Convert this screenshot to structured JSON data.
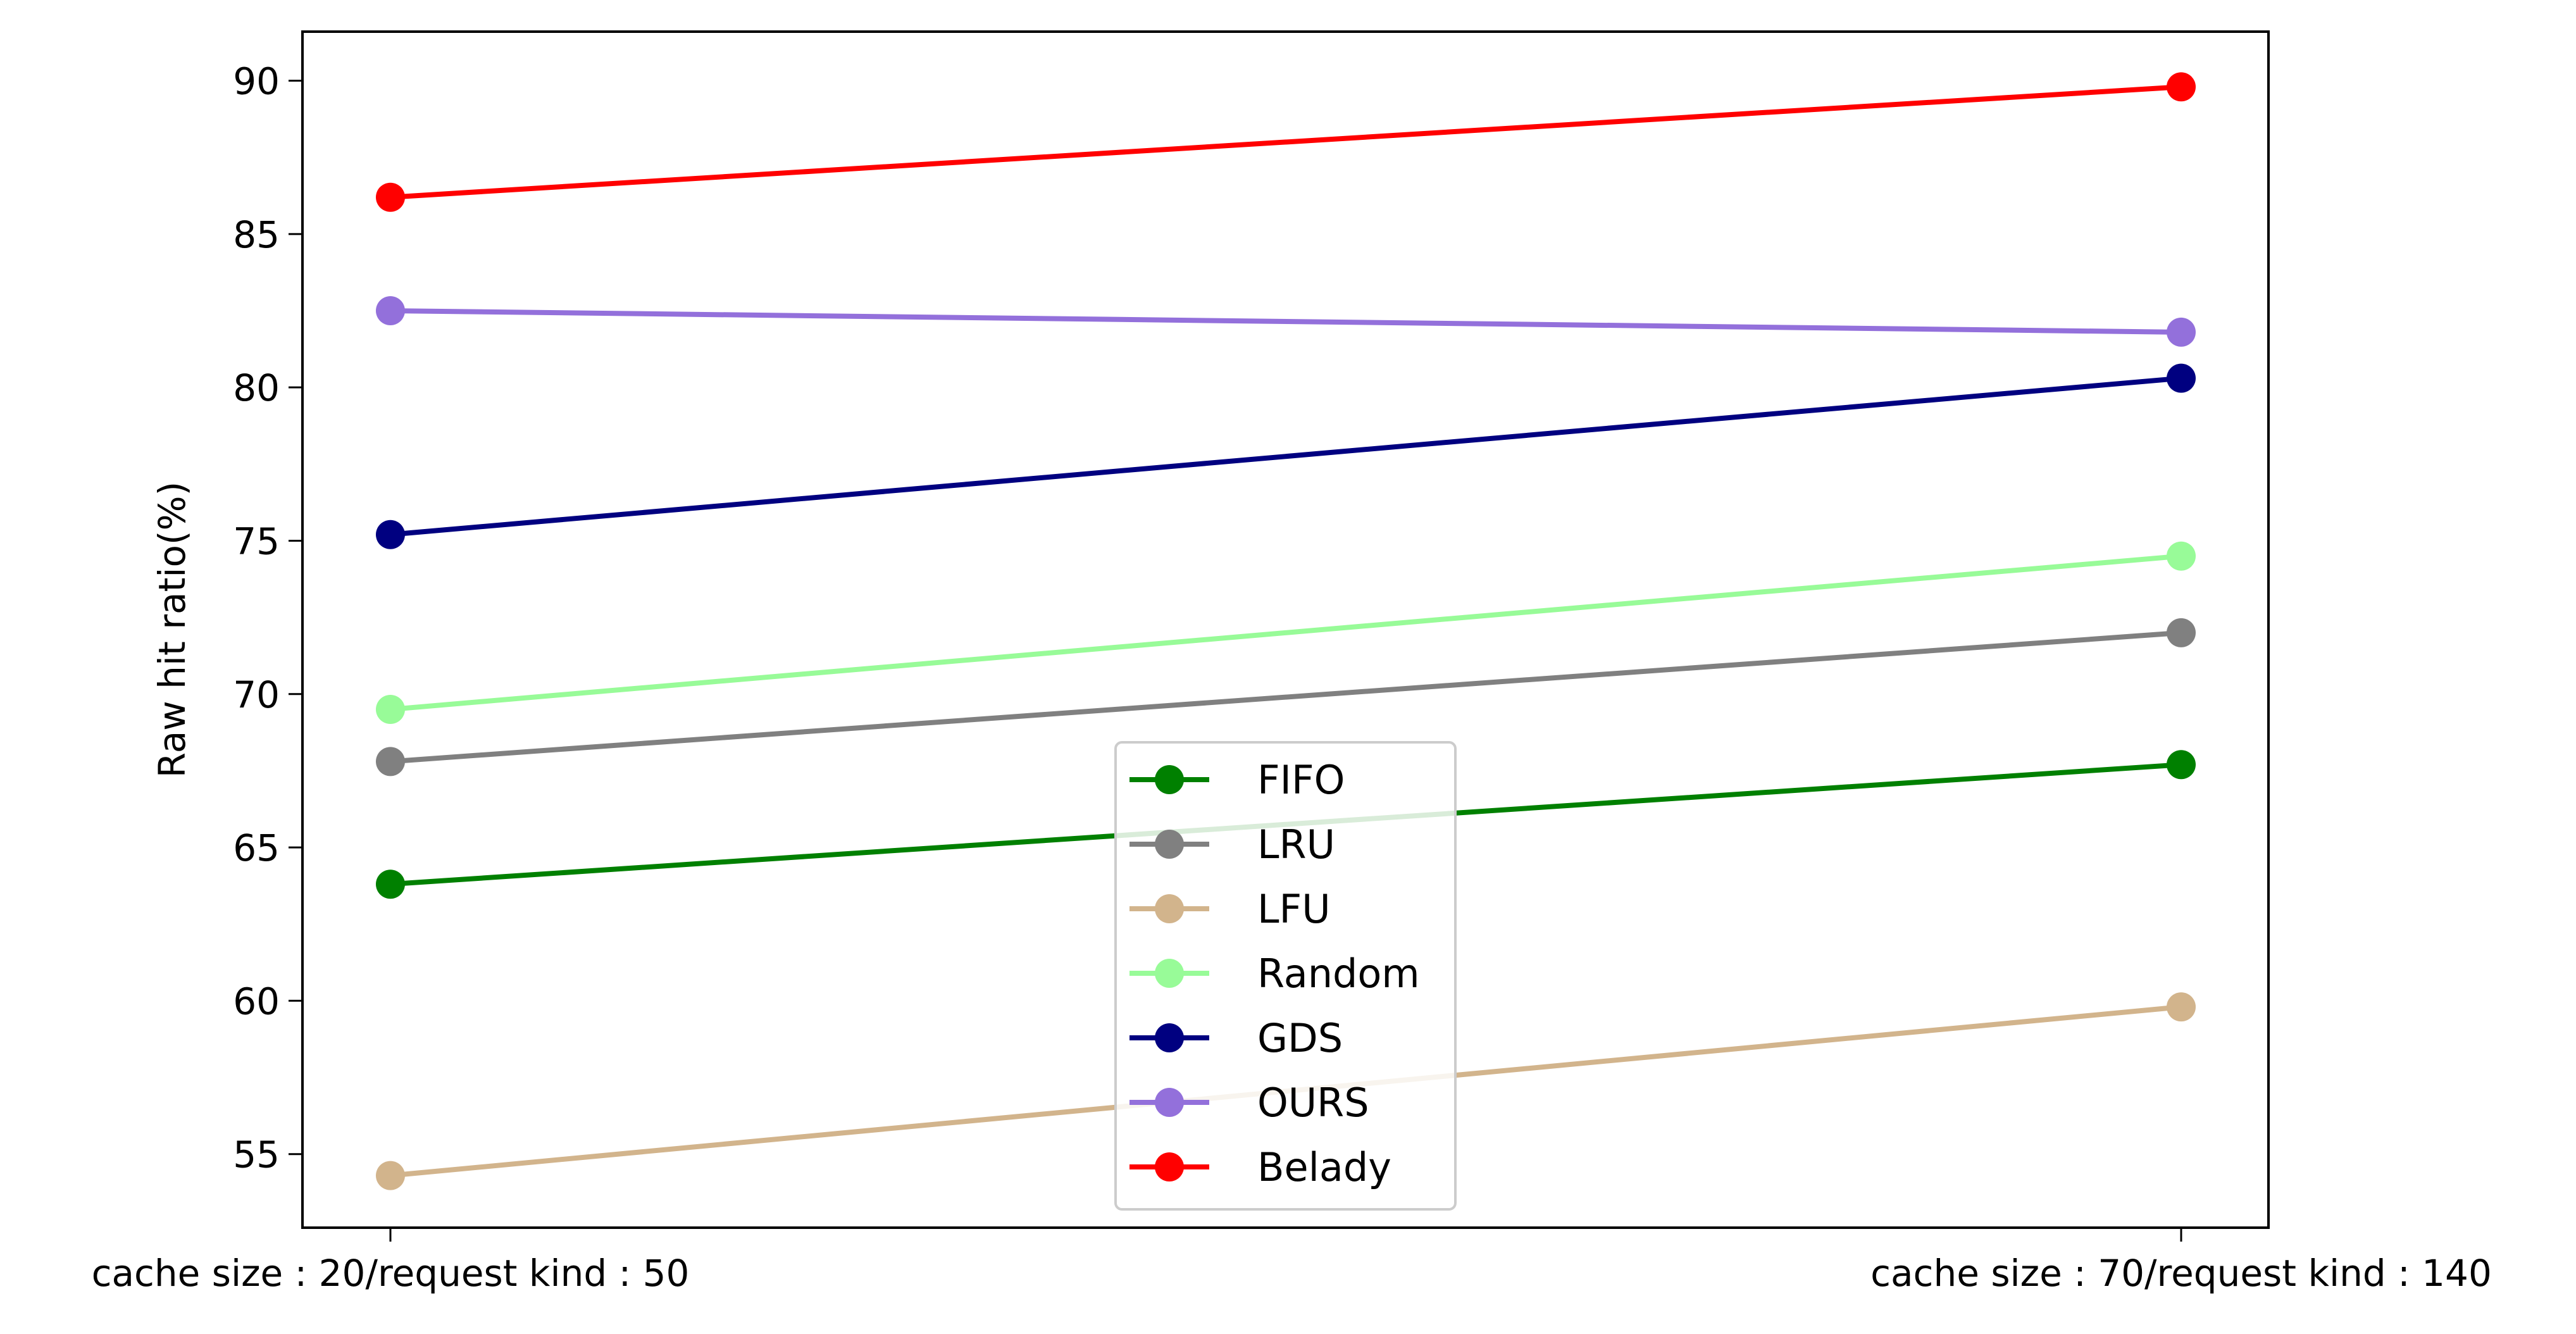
{
  "chart_data": {
    "type": "line",
    "title": "",
    "xlabel": "",
    "ylabel": "Raw hit ratio(%)",
    "categories": [
      "cache size : 20/request kind : 50",
      "cache size : 70/request kind : 140"
    ],
    "ylim": [
      52.6,
      91.6
    ],
    "yticks": [
      55,
      60,
      65,
      70,
      75,
      80,
      85,
      90
    ],
    "grid": false,
    "legend_position": "lower-center",
    "series": [
      {
        "name": "FIFO",
        "color": "#008000",
        "values": [
          63.8,
          67.7
        ]
      },
      {
        "name": "LRU",
        "color": "#808080",
        "values": [
          67.8,
          72.0
        ]
      },
      {
        "name": "LFU",
        "color": "#d2b48c",
        "values": [
          54.3,
          59.8
        ]
      },
      {
        "name": "Random",
        "color": "#98fb98",
        "values": [
          69.5,
          74.5
        ]
      },
      {
        "name": "GDS",
        "color": "#000080",
        "values": [
          75.2,
          80.3
        ]
      },
      {
        "name": "OURS",
        "color": "#9370db",
        "values": [
          82.5,
          81.8
        ]
      },
      {
        "name": "Belady",
        "color": "#ff0000",
        "values": [
          86.2,
          89.8
        ]
      }
    ]
  }
}
